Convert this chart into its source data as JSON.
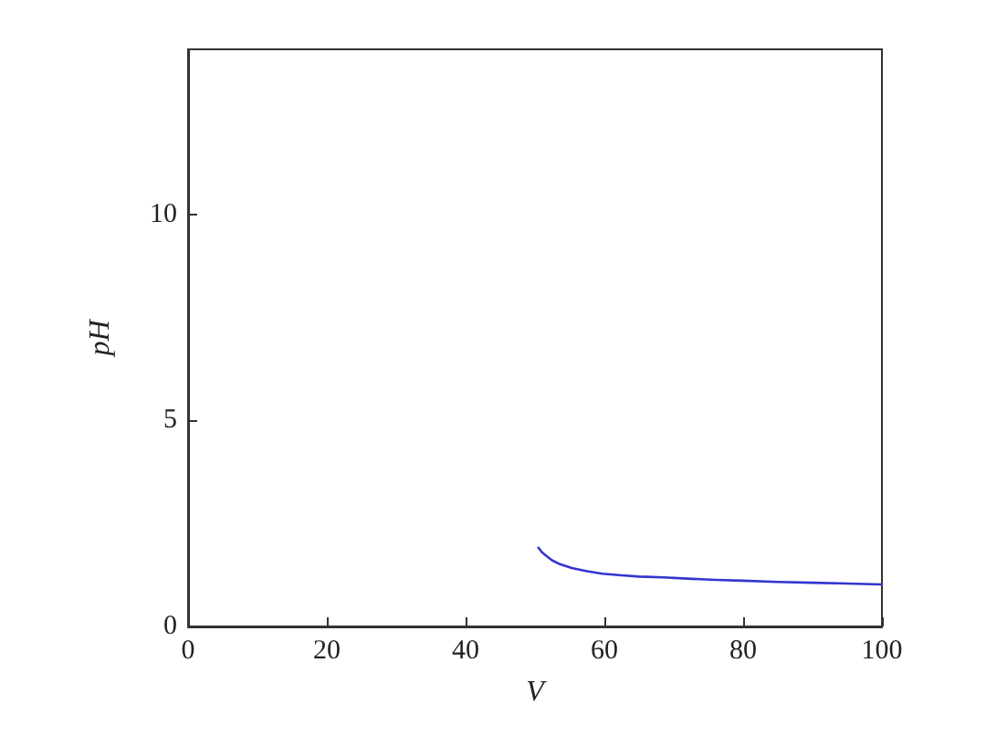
{
  "chart_data": {
    "type": "line",
    "xlabel": "V",
    "ylabel": "pH",
    "x": [
      50.5,
      51,
      51.8,
      52.5,
      53.6,
      55.3,
      57.5,
      59.7,
      62.5,
      65,
      68.5,
      72,
      76,
      79.9,
      85,
      90,
      95,
      100
    ],
    "series": [
      {
        "color": "#3535d0",
        "values": [
          1.91,
          1.8,
          1.69,
          1.6,
          1.51,
          1.42,
          1.34,
          1.28,
          1.24,
          1.21,
          1.19,
          1.16,
          1.13,
          1.11,
          1.08,
          1.06,
          1.04,
          1.02
        ]
      }
    ],
    "xlim": [
      0,
      100
    ],
    "ylim": [
      0,
      14
    ],
    "xticks": [
      0,
      20,
      40,
      60,
      80,
      100
    ],
    "yticks": [
      0,
      5,
      10
    ],
    "grid": false,
    "marker": "none",
    "line_style": "solid"
  }
}
